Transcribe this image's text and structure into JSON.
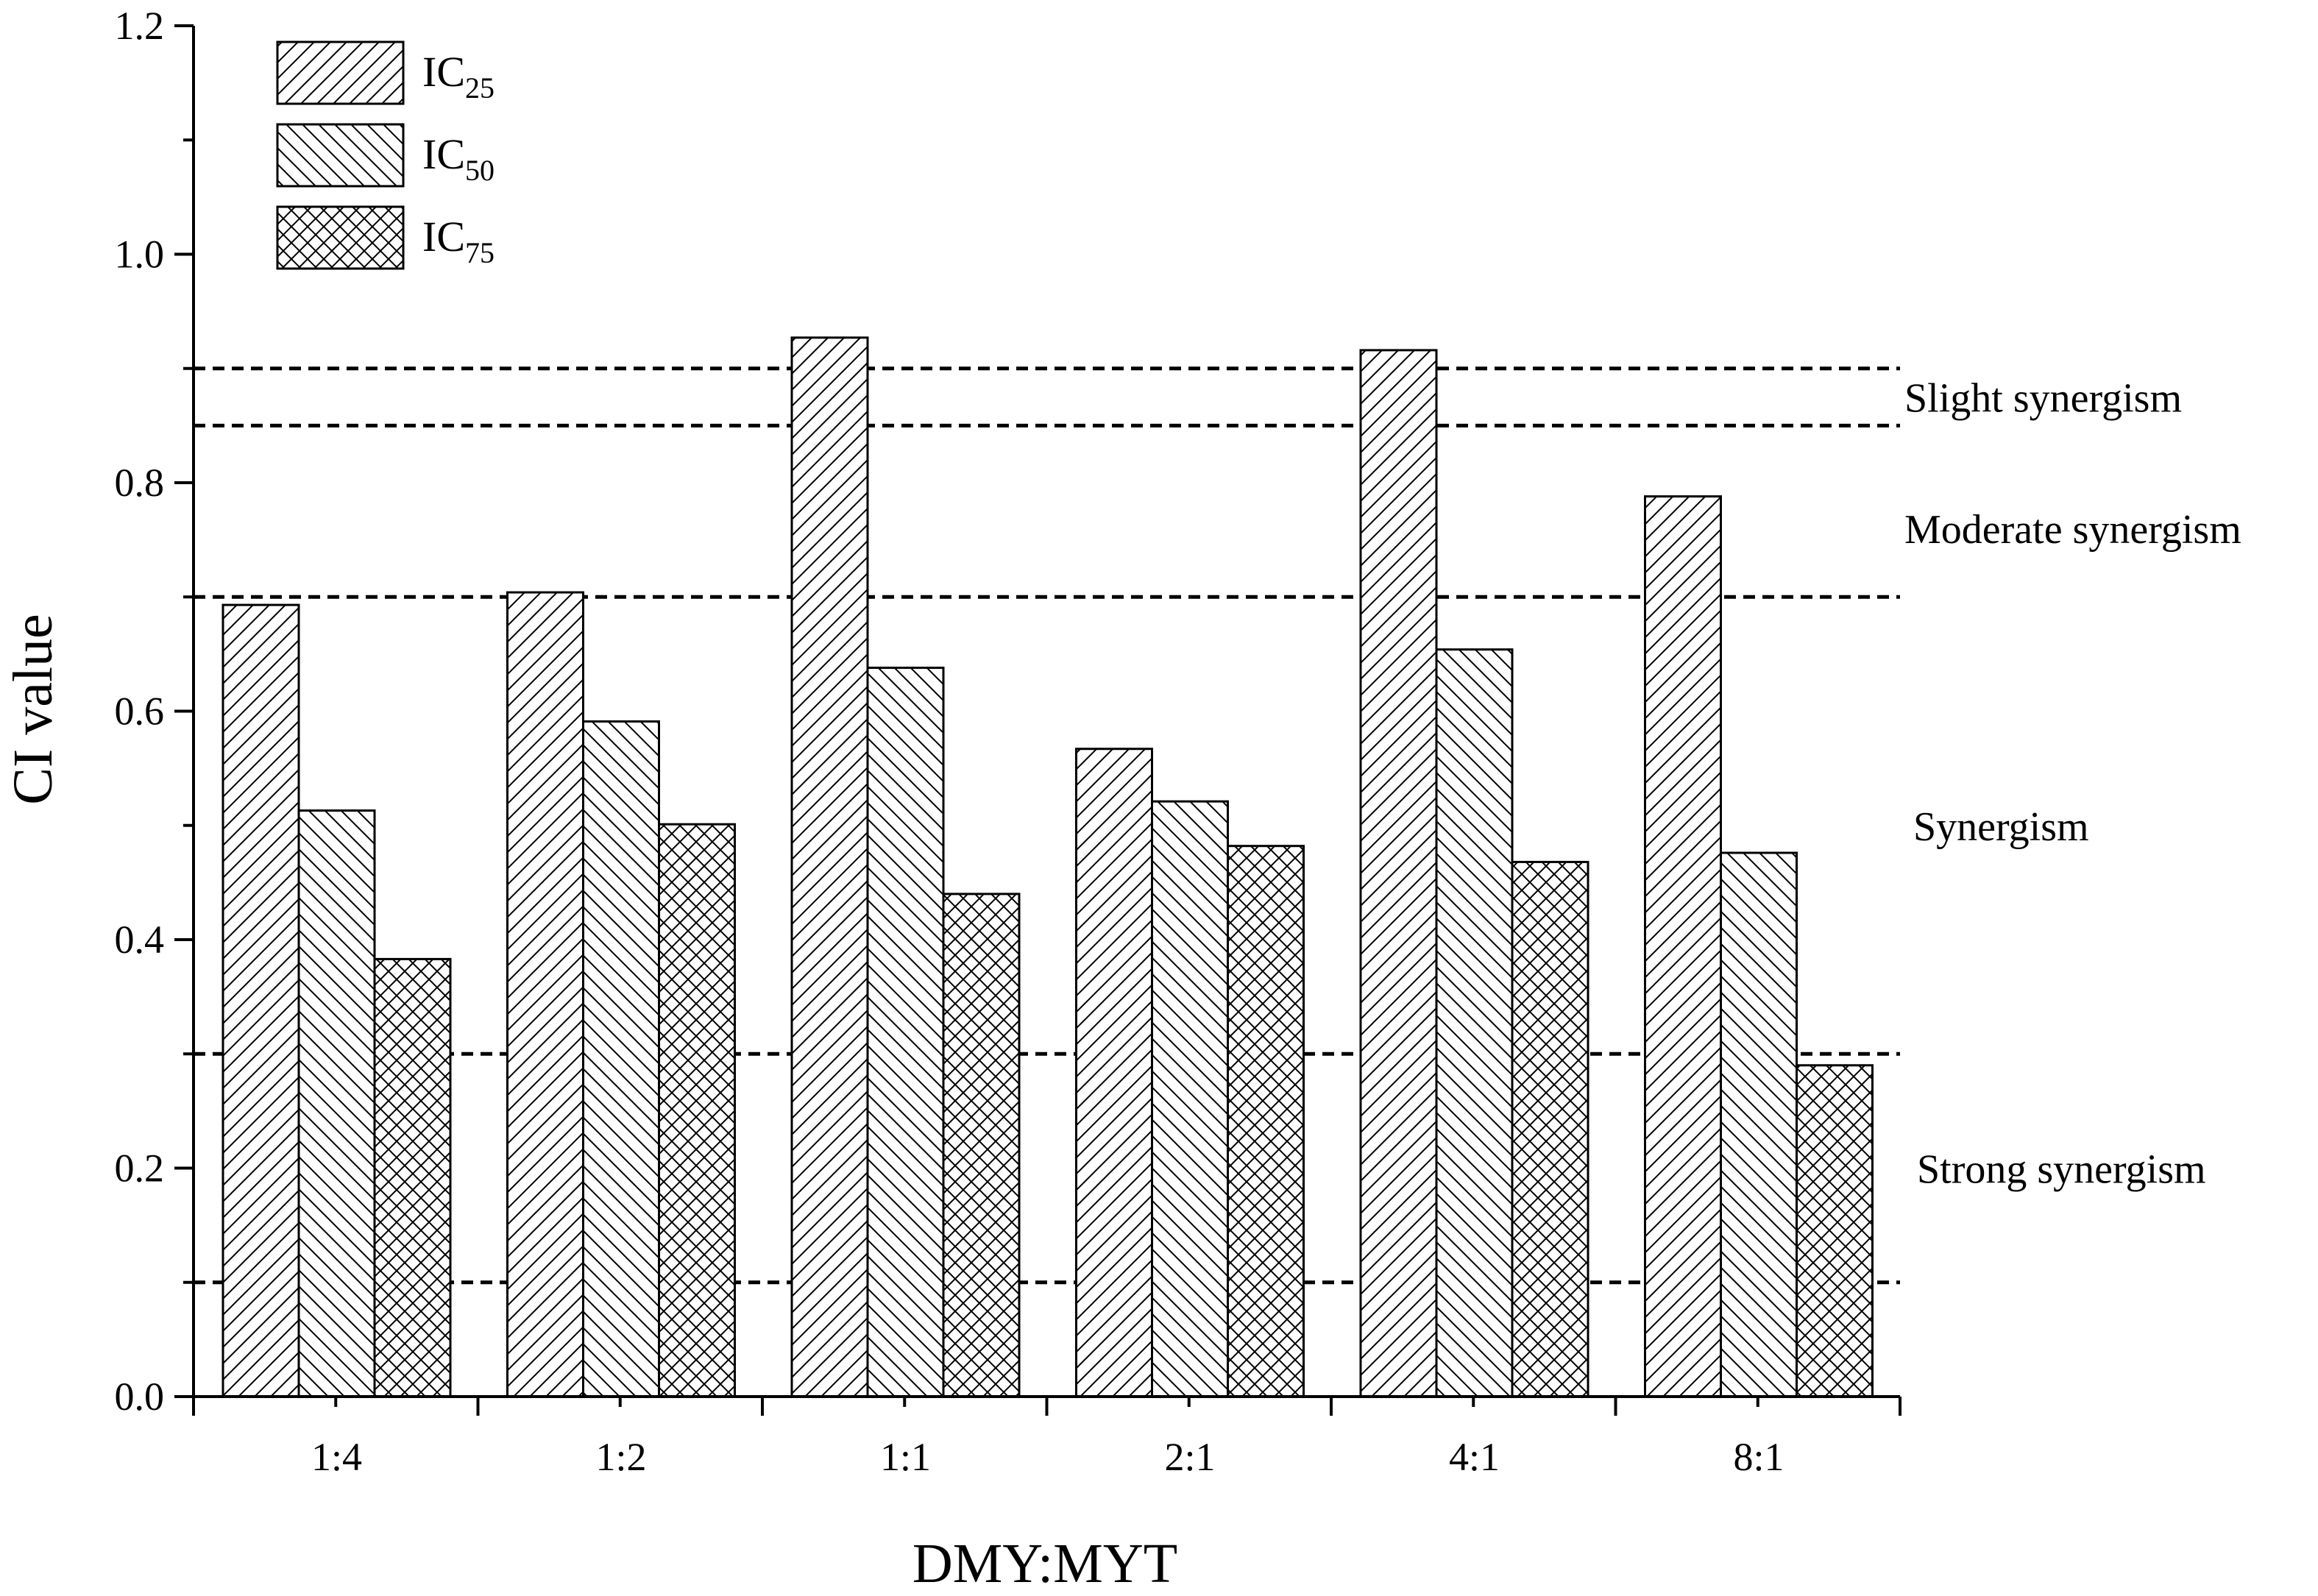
{
  "chart_data": {
    "type": "bar",
    "xlabel": "DMY:MYT",
    "ylabel": "CI value",
    "ylim": [
      0,
      1.2
    ],
    "yticks": [
      "0.0",
      "0.2",
      "0.4",
      "0.6",
      "0.8",
      "1.0",
      "1.2"
    ],
    "categories": [
      "1:4",
      "1:2",
      "1:1",
      "2:1",
      "4:1",
      "8:1"
    ],
    "series": [
      {
        "name": "IC",
        "name_sub": "25",
        "pattern": "hatch-forward",
        "values": [
          0.693,
          0.704,
          0.927,
          0.567,
          0.916,
          0.788
        ]
      },
      {
        "name": "IC",
        "name_sub": "50",
        "pattern": "hatch-back",
        "values": [
          0.513,
          0.591,
          0.638,
          0.521,
          0.654,
          0.476
        ]
      },
      {
        "name": "IC",
        "name_sub": "75",
        "pattern": "crosshatch",
        "values": [
          0.383,
          0.501,
          0.44,
          0.482,
          0.468,
          0.29
        ]
      }
    ],
    "reference_lines": [
      0.1,
      0.3,
      0.7,
      0.85,
      0.9
    ],
    "region_labels": [
      {
        "text": "Slight synergism",
        "y": 0.875
      },
      {
        "text": "Moderate synergism",
        "y": 0.76
      },
      {
        "text": "Synergism",
        "y": 0.5
      },
      {
        "text": "Strong synergism",
        "y": 0.2
      }
    ],
    "legend_position": "top-left",
    "grid": false
  }
}
